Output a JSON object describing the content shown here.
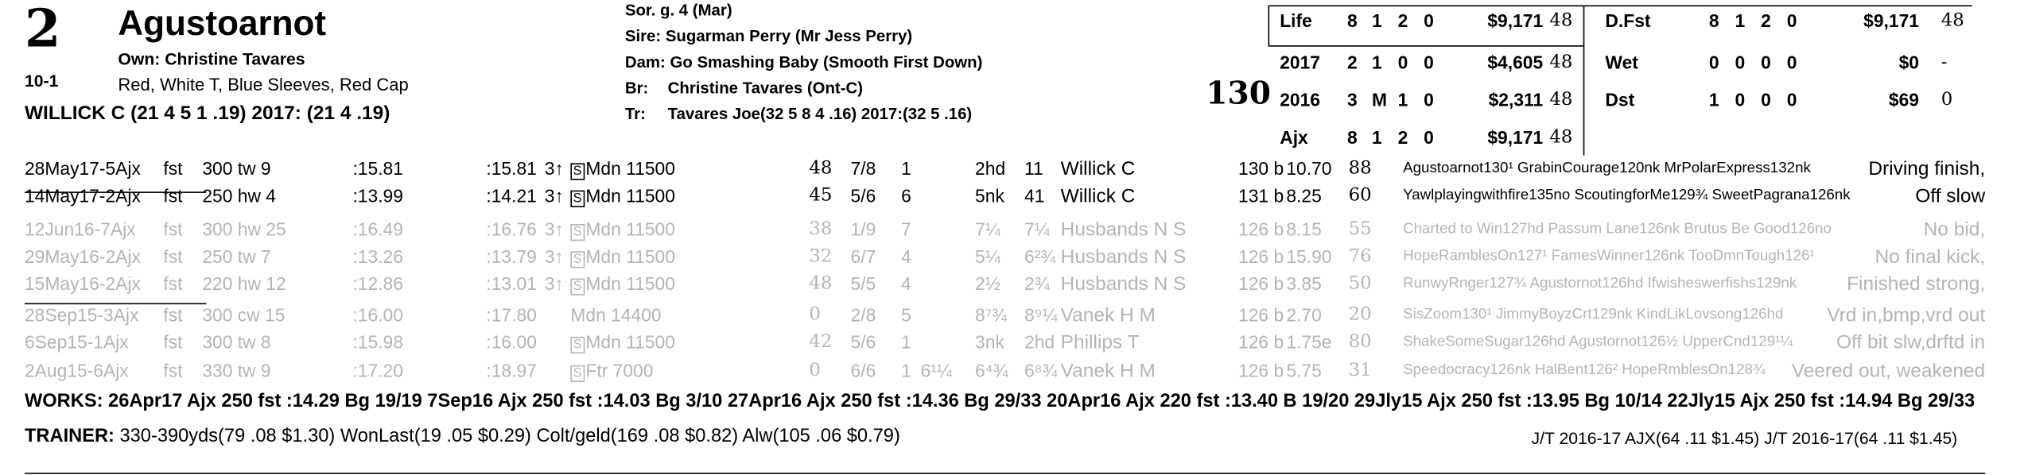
{
  "horse": {
    "number": "2",
    "name": "Agustoarnot",
    "owner": "Own: Christine Tavares",
    "odds": "10-1",
    "silks": "Red, White T, Blue Sleeves, Red Cap",
    "jockey": "WILLICK C (21 4 5 1 .19) 2017: (21 4 .19)"
  },
  "pedigree": {
    "sex_age": "Sor. g. 4 (Mar)",
    "sire": "Sire: Sugarman Perry (Mr Jess Perry)",
    "dam": "Dam: Go Smashing Baby (Smooth First Down)",
    "breeder_label": "Br:",
    "breeder": "Christine Tavares (Ont-C)",
    "trainer_label": "Tr:",
    "trainer": "Tavares Joe(32 5 8 4 .16)  2017:(32 5 .16)"
  },
  "weight": "130",
  "stats_left": [
    {
      "label": "Life",
      "s": "8",
      "w": "1",
      "p": "2",
      "t": "0",
      "earn": "$9,171",
      "spd": "48"
    },
    {
      "label": "2017",
      "s": "2",
      "w": "1",
      "p": "0",
      "t": "0",
      "earn": "$4,605",
      "spd": "48"
    },
    {
      "label": "2016",
      "s": "3",
      "w": "M",
      "p": "1",
      "t": "0",
      "earn": "$2,311",
      "spd": "48"
    },
    {
      "label": "Ajx",
      "s": "8",
      "w": "1",
      "p": "2",
      "t": "0",
      "earn": "$9,171",
      "spd": "48"
    }
  ],
  "stats_right": [
    {
      "label": "D.Fst",
      "s": "8",
      "w": "1",
      "p": "2",
      "t": "0",
      "earn": "$9,171",
      "spd": "48"
    },
    {
      "label": "Wet",
      "s": "0",
      "w": "0",
      "p": "0",
      "t": "0",
      "earn": "$0",
      "spd": "-"
    },
    {
      "label": "Dst",
      "s": "1",
      "w": "0",
      "p": "0",
      "t": "0",
      "earn": "$69",
      "spd": "0"
    }
  ],
  "races": [
    {
      "date": "28May17-5Ajx",
      "cond": "fst",
      "dist": "300 tw 9",
      "f1": ":15.81",
      "f2": ":15.81",
      "age": "3↑",
      "s": "S",
      "cls": "Mdn 11500",
      "spd": "48",
      "pp": "7/8",
      "st": "1",
      "c1": "",
      "c2": "2hd",
      "fin": "11",
      "jockey": "Willick C",
      "wt": "130 b",
      "odds": "10.70",
      "bsf": "88",
      "comp": "Agustoarnot130¹ GrabinCourage120nk MrPolarExpress132nk",
      "comment": "Driving finish,",
      "gray": false
    },
    {
      "date": "14May17-2Ajx",
      "cond": "fst",
      "dist": "250 hw 4",
      "f1": ":13.99",
      "f2": ":14.21",
      "age": "3↑",
      "s": "S",
      "cls": "Mdn 11500",
      "spd": "45",
      "pp": "5/6",
      "st": "6",
      "c1": "",
      "c2": "5nk",
      "fin": "41",
      "jockey": "Willick C",
      "wt": "131 b",
      "odds": "8.25",
      "bsf": "60",
      "comp": "Yawlplayingwithfire135no ScoutingforMe129¾ SweetPagrana126nk",
      "comment": "Off slow",
      "gray": false
    },
    {
      "date": "12Jun16-7Ajx",
      "cond": "fst",
      "dist": "300 hw 25",
      "f1": ":16.49",
      "f2": ":16.76",
      "age": "3↑",
      "s": "S",
      "cls": "Mdn 11500",
      "spd": "38",
      "pp": "1/9",
      "st": "7",
      "c1": "",
      "c2": "7¼",
      "fin": "7¼",
      "jockey": "Husbands N S",
      "wt": "126 b",
      "odds": "8.15",
      "bsf": "55",
      "comp": "Charted to Win127hd Passum Lane126nk Brutus Be Good126no",
      "comment": "No bid,",
      "gray": true
    },
    {
      "date": "29May16-2Ajx",
      "cond": "fst",
      "dist": "250 tw 7",
      "f1": ":13.26",
      "f2": ":13.79",
      "age": "3↑",
      "s": "S",
      "cls": "Mdn 11500",
      "spd": "32",
      "pp": "6/7",
      "st": "4",
      "c1": "",
      "c2": "5¼",
      "fin": "6²¾",
      "jockey": "Husbands N S",
      "wt": "126 b",
      "odds": "15.90",
      "bsf": "76",
      "comp": "HopeRamblesOn127¹ FamesWinner126nk TooDmnTough126¹",
      "comment": "No final kick,",
      "gray": true
    },
    {
      "date": "15May16-2Ajx",
      "cond": "fst",
      "dist": "220 hw 12",
      "f1": ":12.86",
      "f2": ":13.01",
      "age": "3↑",
      "s": "S",
      "cls": "Mdn 11500",
      "spd": "48",
      "pp": "5/5",
      "st": "4",
      "c1": "",
      "c2": "2½",
      "fin": "2¾",
      "jockey": "Husbands N S",
      "wt": "126 b",
      "odds": "3.85",
      "bsf": "50",
      "comp": "RunwyRnger127¾ Agustornot126hd Ifwisheswerfishs129nk",
      "comment": "Finished strong,",
      "gray": true
    },
    {
      "date": "28Sep15-3Ajx",
      "cond": "fst",
      "dist": "300 cw 15",
      "f1": ":16.00",
      "f2": ":17.80",
      "age": "",
      "s": "",
      "cls": "Mdn 14400",
      "spd": "0",
      "pp": "2/8",
      "st": "5",
      "c1": "",
      "c2": "8⁷¾",
      "fin": "8⁹¼",
      "jockey": "Vanek H M",
      "wt": "126 b",
      "odds": "2.70",
      "bsf": "20",
      "comp": "SisZoom130¹ JimmyBoyzCrt129nk KindLikLovsong126hd",
      "comment": "Vrd in,bmp,vrd out",
      "gray": true
    },
    {
      "date": "6Sep15-1Ajx",
      "cond": "fst",
      "dist": "300 tw 8",
      "f1": ":15.98",
      "f2": ":16.00",
      "age": "",
      "s": "S",
      "cls": "Mdn 11500",
      "spd": "42",
      "pp": "5/6",
      "st": "1",
      "c1": "",
      "c2": "3nk",
      "fin": "2hd",
      "jockey": "Phillips T",
      "wt": "126 b",
      "odds": "1.75e",
      "bsf": "80",
      "comp": "ShakeSomeSugar126hd Agustornot126½ UpperCnd129¹¼",
      "comment": "Off bit slw,drftd in",
      "gray": true
    },
    {
      "date": "2Aug15-6Ajx",
      "cond": "fst",
      "dist": "330 tw 9",
      "f1": ":17.20",
      "f2": ":18.97",
      "age": "",
      "s": "S",
      "cls": "Ftr 7000",
      "spd": "0",
      "pp": "6/6",
      "st": "1",
      "c1": "6¹¼",
      "c2": "6⁴¾",
      "fin": "6⁸¾",
      "jockey": "Vanek H M",
      "wt": "126 b",
      "odds": "5.75",
      "bsf": "31",
      "comp": "Speedocracy126nk HalBent126² HopeRmblesOn128¾",
      "comment": "Veered out, weakened",
      "gray": true
    }
  ],
  "works": {
    "label": "WORKS:",
    "text": "26Apr17 Ajx 250 fst :14.29 Bg 19/19  7Sep16 Ajx 250 fst :14.03 Bg 3/10  27Apr16 Ajx 250 fst :14.36 Bg 29/33  20Apr16 Ajx 220 fst :13.40 B 19/20  29Jly15 Ajx 250 fst :13.95 Bg 10/14  22Jly15 Ajx 250 fst :14.94 Bg 29/33"
  },
  "trainer_line": {
    "label": "TRAINER:",
    "text": "330-390yds(79 .08 $1.30) WonLast(19 .05 $0.29) Colt/geld(169 .08 $0.82) Alw(105 .06 $0.79)",
    "jt": "J/T 2016-17 AJX(64 .11 $1.45)  J/T 2016-17(64 .11 $1.45)"
  }
}
